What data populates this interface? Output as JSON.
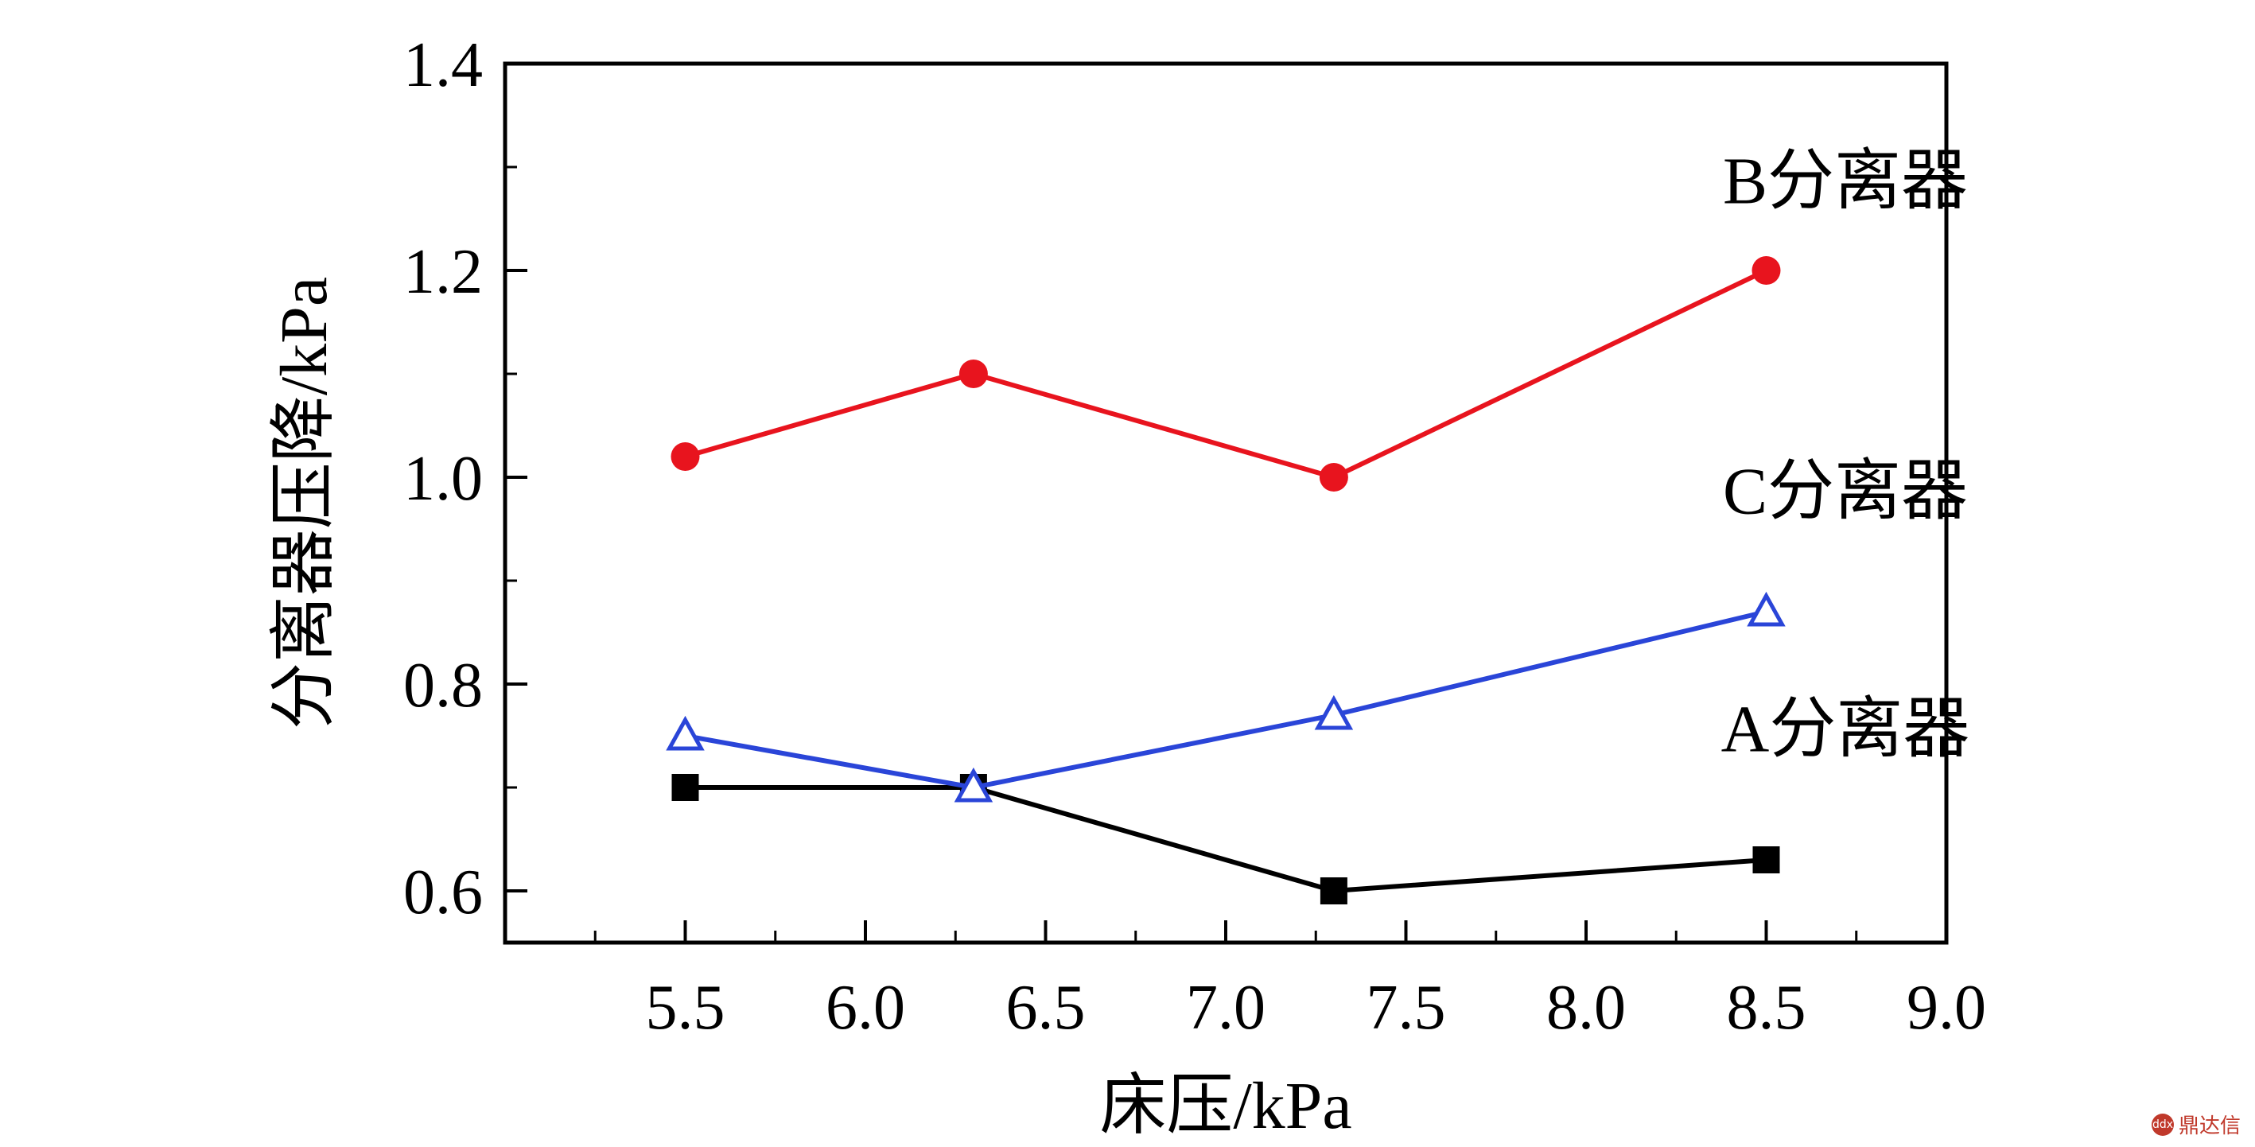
{
  "chart_data": {
    "type": "line",
    "xlabel": "床压/kPa",
    "ylabel": "分离器压降/kPa",
    "xlim": [
      5.0,
      9.0
    ],
    "ylim": [
      0.55,
      1.4
    ],
    "xticks": [
      5.5,
      6.0,
      6.5,
      7.0,
      7.5,
      8.0,
      8.5,
      9.0
    ],
    "xtick_labels": [
      "5.5",
      "6.0",
      "6.5",
      "7.0",
      "7.5",
      "8.0",
      "8.5",
      "9.0"
    ],
    "yticks": [
      0.6,
      0.8,
      1.0,
      1.2,
      1.4
    ],
    "ytick_labels": [
      "0.6",
      "0.8",
      "1.0",
      "1.2",
      "1.4"
    ],
    "x": [
      5.5,
      6.3,
      7.3,
      8.5
    ],
    "grid": false,
    "series": [
      {
        "name": "A分离器",
        "values": [
          0.7,
          0.7,
          0.6,
          0.63
        ],
        "color": "#000000",
        "marker": "square"
      },
      {
        "name": "B分离器",
        "values": [
          1.02,
          1.1,
          1.0,
          1.2
        ],
        "color": "#e8141e",
        "marker": "circle"
      },
      {
        "name": "C分离器",
        "values": [
          0.75,
          0.7,
          0.77,
          0.87
        ],
        "color": "#2a45d8",
        "marker": "open-triangle"
      }
    ]
  },
  "watermark": {
    "text": "鼎达信",
    "icon": "ddx-logo-icon"
  }
}
